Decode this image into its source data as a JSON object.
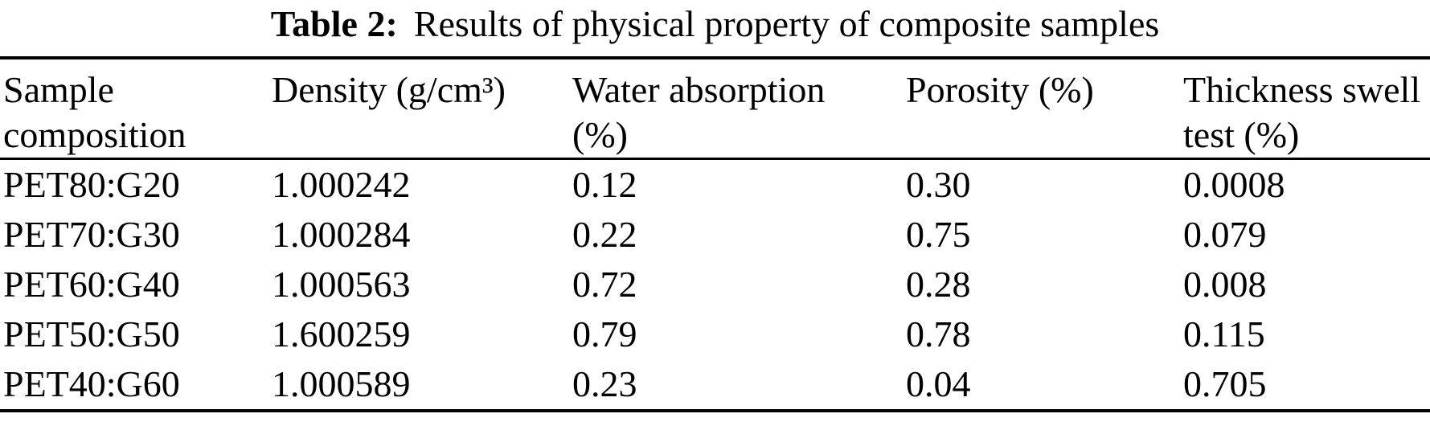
{
  "page": {
    "background": "#ffffff",
    "text_color": "#000000",
    "rule_color": "#000000"
  },
  "caption": {
    "label": "Table 2:",
    "text": "Results of physical property of composite samples"
  },
  "table": {
    "headers": [
      {
        "name": "sample-composition",
        "lines": [
          "Sample",
          "composition"
        ]
      },
      {
        "name": "density",
        "lines": [
          "Density (g/cm³)"
        ]
      },
      {
        "name": "water-absorption",
        "lines": [
          "Water absorption",
          "(%)"
        ]
      },
      {
        "name": "porosity",
        "lines": [
          "Porosity (%)"
        ]
      },
      {
        "name": "thickness-swell",
        "lines": [
          "Thickness swell",
          "test (%)"
        ]
      }
    ],
    "rows": [
      [
        "PET80:G20",
        "1.000242",
        "0.12",
        "0.30",
        "0.0008"
      ],
      [
        "PET70:G30",
        "1.000284",
        "0.22",
        "0.75",
        "0.079"
      ],
      [
        "PET60:G40",
        "1.000563",
        "0.72",
        "0.28",
        "0.008"
      ],
      [
        "PET50:G50",
        "1.600259",
        "0.79",
        "0.78",
        "0.115"
      ],
      [
        "PET40:G60",
        "1.000589",
        "0.23",
        "0.04",
        "0.705"
      ]
    ]
  }
}
